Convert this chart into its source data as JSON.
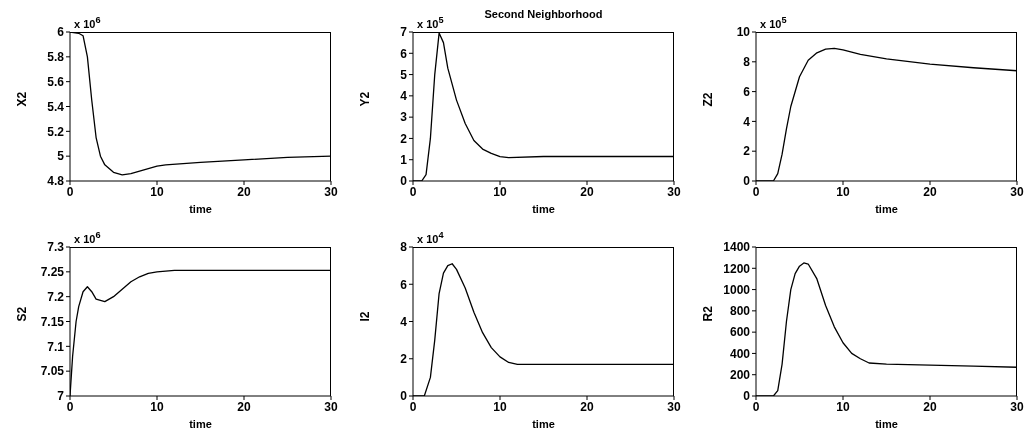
{
  "chart_data": [
    {
      "type": "line",
      "ylabel": "X2",
      "xlabel": "time",
      "annotations": [
        "x 10$^{6}$"
      ],
      "x": [
        0,
        1,
        1.5,
        2,
        2.5,
        3,
        3.5,
        4,
        5,
        6,
        7,
        8,
        9,
        10,
        11,
        13,
        15,
        20,
        25,
        30
      ],
      "series": [
        {
          "color": "#000000",
          "values": [
            6,
            5.99,
            5.97,
            5.8,
            5.45,
            5.15,
            5.0,
            4.93,
            4.87,
            4.85,
            4.86,
            4.88,
            4.9,
            4.92,
            4.93,
            4.94,
            4.95,
            4.97,
            4.99,
            5.0
          ]
        }
      ],
      "xlim": [
        0,
        30
      ],
      "xticks": [
        0,
        10,
        20,
        30
      ],
      "ylim": [
        4.8,
        6
      ],
      "yticks": [
        4.8,
        5,
        5.2,
        5.4,
        5.6,
        5.8,
        6
      ],
      "grid": false,
      "legend": false,
      "marker": "none",
      "line_style": "solid"
    },
    {
      "type": "line",
      "title": "Second Neighborhood",
      "ylabel": "Y2",
      "xlabel": "time",
      "annotations": [
        "x 10$^{5}$"
      ],
      "x": [
        0,
        1,
        1.5,
        2,
        2.5,
        3,
        3.5,
        4,
        5,
        6,
        7,
        8,
        9,
        10,
        11,
        15,
        20,
        30
      ],
      "series": [
        {
          "color": "#000000",
          "values": [
            0,
            0,
            0.3,
            2.0,
            5,
            6.95,
            6.5,
            5.3,
            3.8,
            2.7,
            1.9,
            1.5,
            1.3,
            1.15,
            1.1,
            1.15,
            1.15,
            1.15
          ]
        }
      ],
      "xlim": [
        0,
        30
      ],
      "xticks": [
        0,
        10,
        20,
        30
      ],
      "ylim": [
        0,
        7
      ],
      "yticks": [
        0,
        1,
        2,
        3,
        4,
        5,
        6,
        7
      ],
      "grid": false,
      "legend": false,
      "marker": "none",
      "line_style": "solid"
    },
    {
      "type": "line",
      "ylabel": "Z2",
      "xlabel": "time",
      "annotations": [
        "x 10$^{5}$"
      ],
      "x": [
        0,
        2,
        2.5,
        3,
        3.5,
        4,
        5,
        6,
        7,
        8,
        9,
        10,
        12,
        15,
        20,
        25,
        30
      ],
      "series": [
        {
          "color": "#000000",
          "values": [
            0,
            0,
            0.5,
            1.8,
            3.5,
            5,
            7,
            8.1,
            8.6,
            8.85,
            8.9,
            8.8,
            8.5,
            8.2,
            7.85,
            7.6,
            7.4
          ]
        }
      ],
      "xlim": [
        0,
        30
      ],
      "xticks": [
        0,
        10,
        20,
        30
      ],
      "ylim": [
        0,
        10
      ],
      "yticks": [
        0,
        2,
        4,
        6,
        8,
        10
      ],
      "grid": false,
      "legend": false,
      "marker": "none",
      "line_style": "solid"
    },
    {
      "type": "line",
      "ylabel": "S2",
      "xlabel": "time",
      "annotations": [
        "x 10$^{6}$"
      ],
      "x": [
        0,
        0.3,
        0.7,
        1,
        1.5,
        2,
        2.5,
        3,
        4,
        5,
        6,
        7,
        8,
        9,
        10,
        12,
        15,
        30
      ],
      "series": [
        {
          "color": "#000000",
          "values": [
            7.0,
            7.08,
            7.15,
            7.18,
            7.21,
            7.22,
            7.21,
            7.195,
            7.19,
            7.2,
            7.215,
            7.23,
            7.24,
            7.247,
            7.25,
            7.253,
            7.253,
            7.253
          ]
        }
      ],
      "xlim": [
        0,
        30
      ],
      "xticks": [
        0,
        10,
        20,
        30
      ],
      "ylim": [
        7,
        7.3
      ],
      "yticks": [
        7,
        7.05,
        7.1,
        7.15,
        7.2,
        7.25,
        7.3
      ],
      "grid": false,
      "legend": false,
      "marker": "none",
      "line_style": "solid"
    },
    {
      "type": "line",
      "ylabel": "I2",
      "xlabel": "time",
      "annotations": [
        "x 10$^{4}$"
      ],
      "x": [
        0,
        1.3,
        2,
        2.5,
        3,
        3.5,
        4,
        4.5,
        5,
        6,
        7,
        8,
        9,
        10,
        11,
        12,
        15,
        20,
        30
      ],
      "series": [
        {
          "color": "#000000",
          "values": [
            0,
            0,
            1,
            3,
            5.5,
            6.6,
            7.0,
            7.1,
            6.8,
            5.8,
            4.5,
            3.4,
            2.6,
            2.1,
            1.8,
            1.7,
            1.7,
            1.7,
            1.7
          ]
        }
      ],
      "xlim": [
        0,
        30
      ],
      "xticks": [
        0,
        10,
        20,
        30
      ],
      "ylim": [
        0,
        8
      ],
      "yticks": [
        0,
        2,
        4,
        6,
        8
      ],
      "grid": false,
      "legend": false,
      "marker": "none",
      "line_style": "solid"
    },
    {
      "type": "line",
      "ylabel": "R2",
      "xlabel": "time",
      "x": [
        0,
        2,
        2.5,
        3,
        3.5,
        4,
        4.5,
        5,
        5.5,
        6,
        7,
        8,
        9,
        10,
        11,
        12,
        13,
        15,
        20,
        25,
        30
      ],
      "series": [
        {
          "color": "#000000",
          "values": [
            0,
            0,
            50,
            300,
            700,
            1000,
            1150,
            1220,
            1250,
            1240,
            1100,
            850,
            650,
            500,
            400,
            350,
            310,
            300,
            290,
            280,
            270
          ]
        }
      ],
      "xlim": [
        0,
        30
      ],
      "xticks": [
        0,
        10,
        20,
        30
      ],
      "ylim": [
        0,
        1400
      ],
      "yticks": [
        0,
        200,
        400,
        600,
        800,
        1000,
        1200,
        1400
      ],
      "grid": false,
      "legend": false,
      "marker": "none",
      "line_style": "solid"
    }
  ]
}
